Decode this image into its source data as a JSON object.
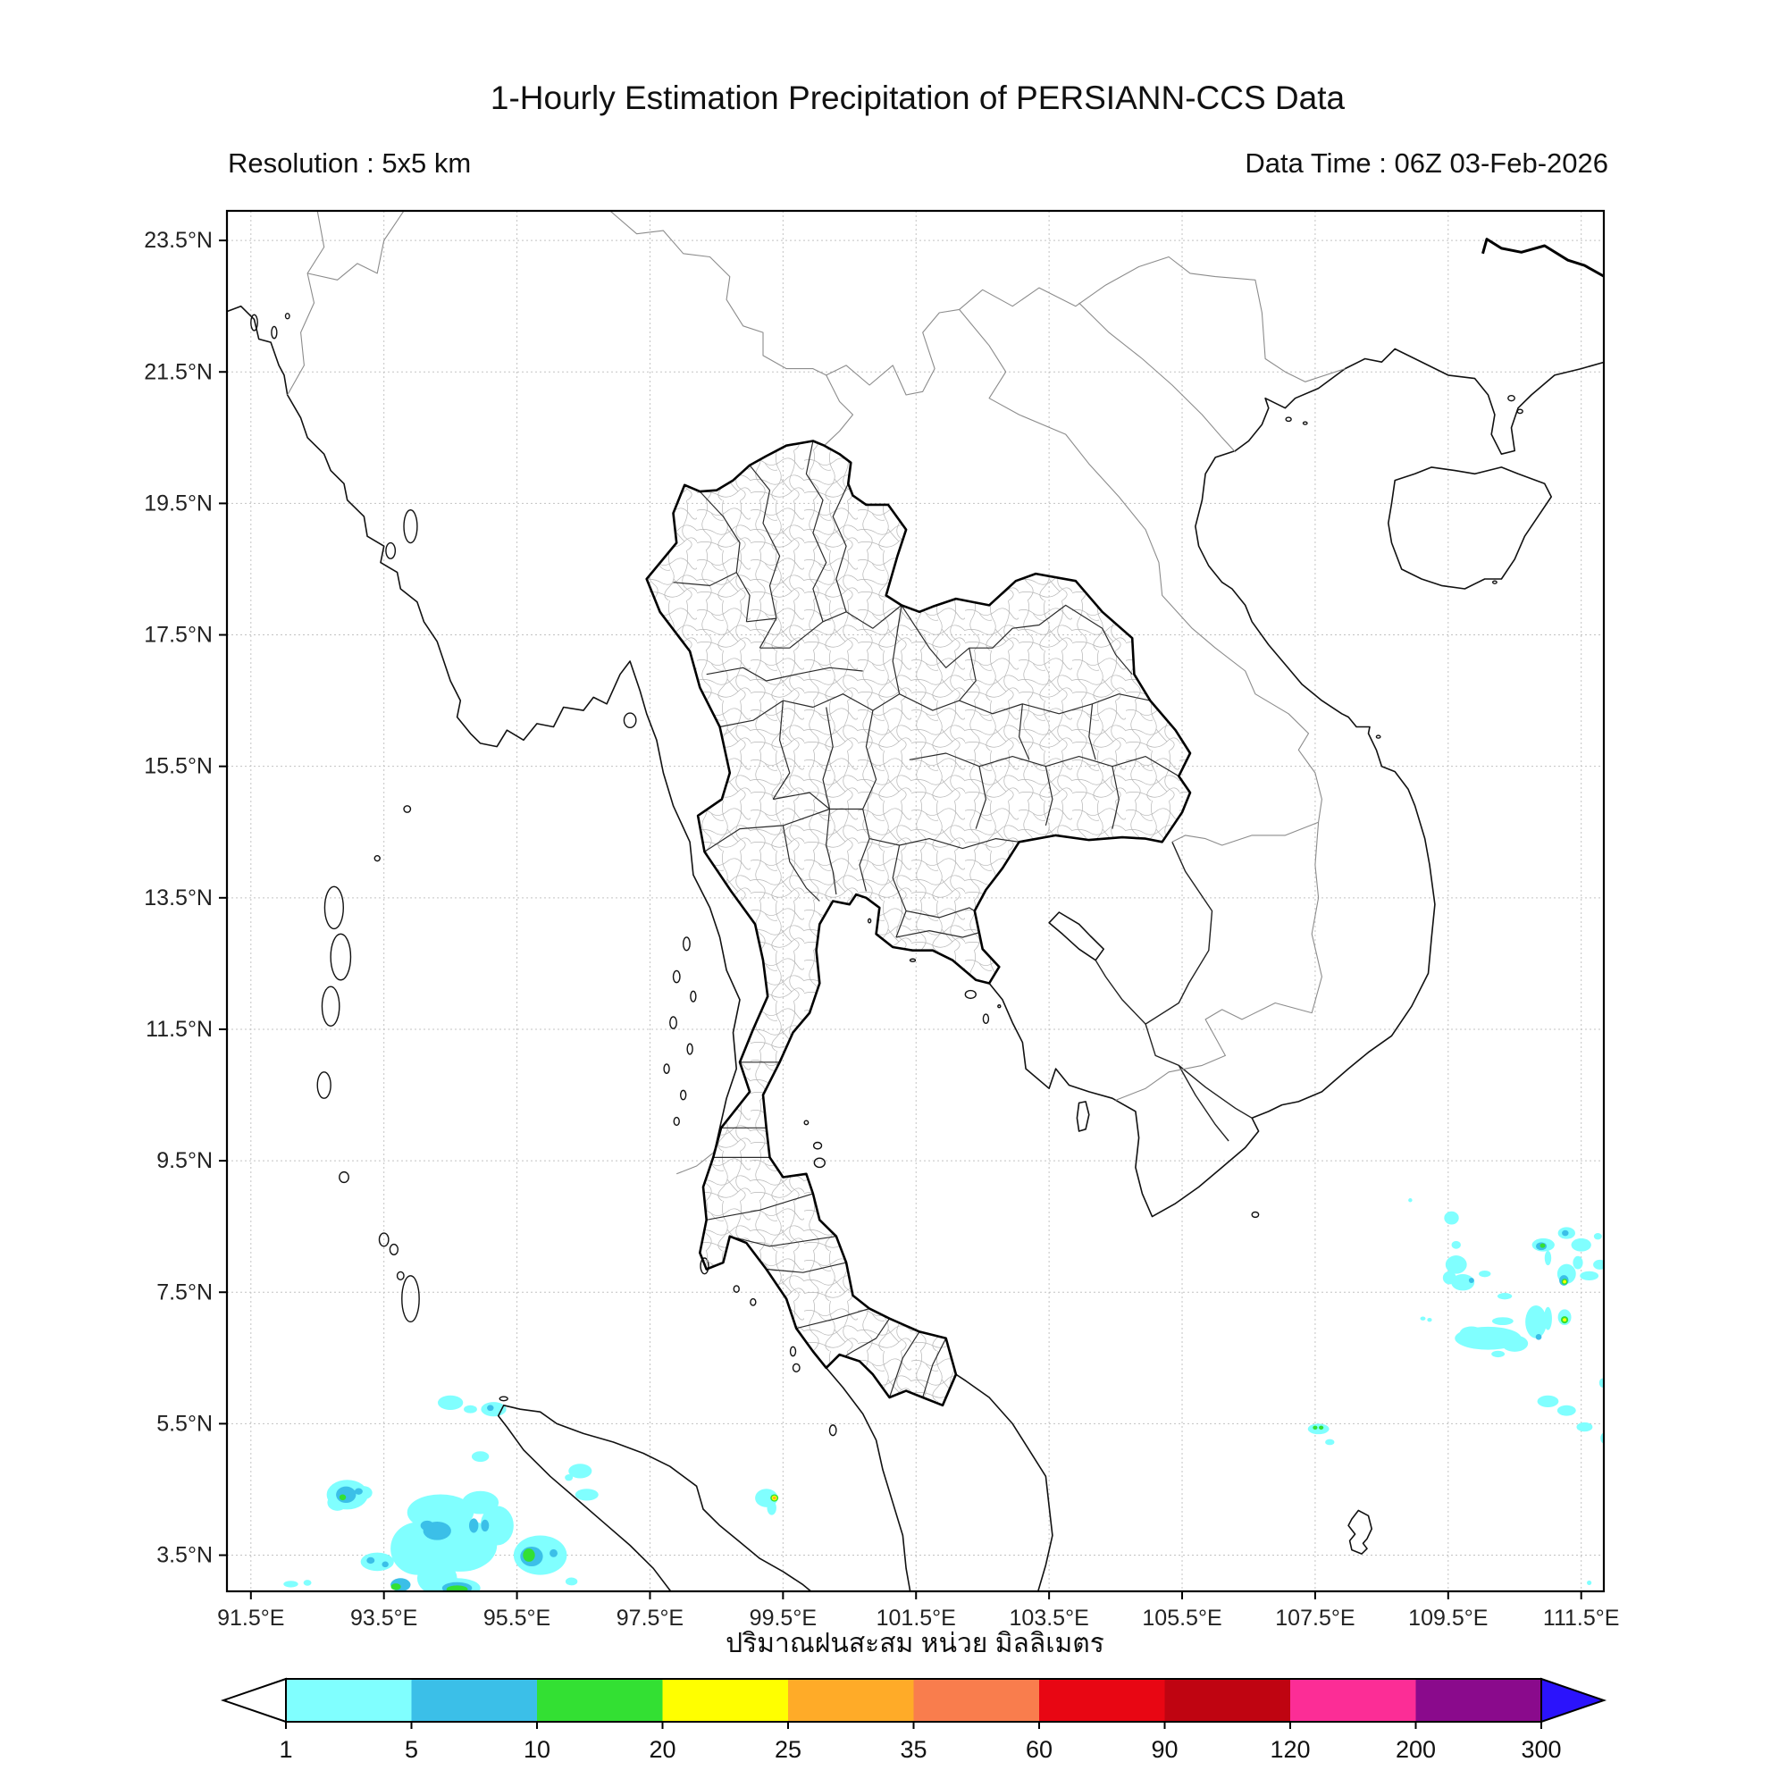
{
  "header": {
    "title": "1-Hourly Estimation Precipitation of PERSIANN-CCS Data",
    "resolution": "Resolution : 5x5 km",
    "data_time": "Data Time : 06Z 03-Feb-2026"
  },
  "axes": {
    "xlabel_thai": "ปริมาณฝนสะสม หน่วย มิลลิเมตร",
    "lat_tick_labels": [
      "23.5°N",
      "21.5°N",
      "19.5°N",
      "17.5°N",
      "15.5°N",
      "13.5°N",
      "11.5°N",
      "9.5°N",
      "7.5°N",
      "5.5°N",
      "3.5°N"
    ],
    "lat_tick_values": [
      23.5,
      21.5,
      19.5,
      17.5,
      15.5,
      13.5,
      11.5,
      9.5,
      7.5,
      5.5,
      3.5
    ],
    "lon_tick_labels": [
      "91.5°E",
      "93.5°E",
      "95.5°E",
      "97.5°E",
      "99.5°E",
      "101.5°E",
      "103.5°E",
      "105.5°E",
      "107.5°E",
      "109.5°E",
      "111.5°E"
    ],
    "lon_tick_values": [
      91.5,
      93.5,
      95.5,
      97.5,
      99.5,
      101.5,
      103.5,
      105.5,
      107.5,
      109.5,
      111.5
    ],
    "lon_range": [
      91.14,
      111.84
    ],
    "lat_range": [
      2.95,
      23.95
    ],
    "grid": true
  },
  "colorbar": {
    "labels": [
      "1",
      "5",
      "10",
      "20",
      "25",
      "35",
      "60",
      "90",
      "120",
      "200",
      "300"
    ],
    "values": [
      1,
      5,
      10,
      20,
      25,
      35,
      60,
      90,
      120,
      200,
      300
    ],
    "segment_colors": [
      "#80ffff",
      "#3bbfe8",
      "#33e033",
      "#ffff00",
      "#ffab28",
      "#f97d4d",
      "#e80613",
      "#bf0411",
      "#fc2d96",
      "#8a0a8c"
    ],
    "under_color": "#ffffff",
    "over_color": "#2b13fc",
    "units": "mm"
  },
  "precipitation": {
    "note": "cells = [lon, lat, width_deg, height_deg, level_mm]",
    "cells": [
      [
        92.95,
        4.42,
        0.62,
        0.45,
        1
      ],
      [
        92.8,
        4.3,
        0.3,
        0.25,
        1
      ],
      [
        93.2,
        4.45,
        0.25,
        0.2,
        1
      ],
      [
        92.93,
        4.42,
        0.3,
        0.25,
        5
      ],
      [
        93.12,
        4.47,
        0.12,
        0.1,
        5
      ],
      [
        92.88,
        4.38,
        0.1,
        0.09,
        10
      ],
      [
        94.35,
        4.15,
        1.0,
        0.55,
        1
      ],
      [
        94.0,
        3.6,
        0.8,
        0.8,
        1
      ],
      [
        94.65,
        3.65,
        1.1,
        0.8,
        1
      ],
      [
        94.95,
        4.3,
        0.55,
        0.35,
        1
      ],
      [
        95.2,
        3.95,
        0.5,
        0.6,
        1
      ],
      [
        94.3,
        3.15,
        0.6,
        0.5,
        1
      ],
      [
        94.6,
        3.0,
        0.7,
        0.3,
        1
      ],
      [
        94.3,
        3.87,
        0.42,
        0.28,
        5
      ],
      [
        94.15,
        3.95,
        0.2,
        0.15,
        5
      ],
      [
        94.85,
        3.95,
        0.14,
        0.22,
        5
      ],
      [
        95.02,
        3.95,
        0.12,
        0.18,
        5
      ],
      [
        94.6,
        3.0,
        0.45,
        0.18,
        5
      ],
      [
        94.6,
        2.98,
        0.32,
        0.12,
        10
      ],
      [
        93.75,
        3.05,
        0.3,
        0.2,
        5
      ],
      [
        93.68,
        3.02,
        0.15,
        0.1,
        10
      ],
      [
        95.85,
        3.5,
        0.8,
        0.6,
        1
      ],
      [
        95.72,
        3.48,
        0.34,
        0.3,
        5
      ],
      [
        95.68,
        3.5,
        0.18,
        0.2,
        10
      ],
      [
        96.05,
        3.53,
        0.12,
        0.12,
        5
      ],
      [
        93.4,
        3.4,
        0.5,
        0.28,
        1
      ],
      [
        93.3,
        3.42,
        0.12,
        0.1,
        5
      ],
      [
        93.52,
        3.36,
        0.1,
        0.09,
        5
      ],
      [
        92.1,
        3.06,
        0.22,
        0.1,
        1
      ],
      [
        92.35,
        3.08,
        0.12,
        0.09,
        1
      ],
      [
        94.5,
        5.82,
        0.38,
        0.22,
        1
      ],
      [
        94.8,
        5.72,
        0.2,
        0.12,
        1
      ],
      [
        95.15,
        5.72,
        0.38,
        0.22,
        1
      ],
      [
        95.1,
        5.74,
        0.1,
        0.09,
        5
      ],
      [
        94.95,
        5.0,
        0.26,
        0.16,
        1
      ],
      [
        96.45,
        4.78,
        0.35,
        0.22,
        1
      ],
      [
        96.28,
        4.68,
        0.12,
        0.1,
        1
      ],
      [
        96.55,
        4.42,
        0.35,
        0.18,
        1
      ],
      [
        96.32,
        3.1,
        0.18,
        0.12,
        1
      ],
      [
        99.25,
        4.37,
        0.34,
        0.28,
        1
      ],
      [
        99.33,
        4.22,
        0.14,
        0.22,
        1
      ],
      [
        99.37,
        4.37,
        0.12,
        0.11,
        10
      ],
      [
        99.37,
        4.37,
        0.08,
        0.075,
        20
      ],
      [
        99.37,
        4.37,
        0.045,
        0.04,
        25
      ],
      [
        108.93,
        8.9,
        0.06,
        0.06,
        1
      ],
      [
        109.55,
        8.63,
        0.22,
        0.2,
        1
      ],
      [
        109.62,
        8.22,
        0.14,
        0.12,
        1
      ],
      [
        109.62,
        7.92,
        0.32,
        0.28,
        1
      ],
      [
        109.72,
        7.65,
        0.35,
        0.25,
        1
      ],
      [
        109.52,
        7.72,
        0.2,
        0.2,
        1
      ],
      [
        110.05,
        7.78,
        0.18,
        0.1,
        1
      ],
      [
        109.85,
        7.68,
        0.08,
        0.08,
        5
      ],
      [
        111.28,
        8.4,
        0.26,
        0.18,
        1
      ],
      [
        111.26,
        8.4,
        0.1,
        0.09,
        5
      ],
      [
        110.93,
        8.22,
        0.34,
        0.2,
        1
      ],
      [
        110.9,
        8.2,
        0.16,
        0.12,
        5
      ],
      [
        110.92,
        8.21,
        0.08,
        0.07,
        10
      ],
      [
        111.5,
        8.22,
        0.3,
        0.2,
        1
      ],
      [
        111.75,
        8.35,
        0.12,
        0.1,
        1
      ],
      [
        111.0,
        8.02,
        0.1,
        0.22,
        1
      ],
      [
        111.28,
        7.78,
        0.28,
        0.3,
        1
      ],
      [
        111.45,
        7.95,
        0.15,
        0.2,
        1
      ],
      [
        111.24,
        7.68,
        0.14,
        0.16,
        5
      ],
      [
        111.25,
        7.66,
        0.09,
        0.09,
        10
      ],
      [
        111.25,
        7.66,
        0.05,
        0.05,
        20
      ],
      [
        111.62,
        7.75,
        0.28,
        0.14,
        1
      ],
      [
        111.78,
        7.92,
        0.2,
        0.15,
        1
      ],
      [
        110.35,
        7.44,
        0.22,
        0.1,
        1
      ],
      [
        109.12,
        7.1,
        0.08,
        0.06,
        1
      ],
      [
        109.22,
        7.08,
        0.07,
        0.06,
        1
      ],
      [
        111.25,
        7.12,
        0.2,
        0.24,
        1
      ],
      [
        111.25,
        7.08,
        0.11,
        0.11,
        10
      ],
      [
        111.25,
        7.08,
        0.055,
        0.05,
        20
      ],
      [
        110.82,
        7.05,
        0.32,
        0.5,
        1
      ],
      [
        111.0,
        7.1,
        0.12,
        0.35,
        1
      ],
      [
        110.86,
        6.82,
        0.09,
        0.09,
        5
      ],
      [
        110.32,
        7.06,
        0.32,
        0.12,
        1
      ],
      [
        110.1,
        6.8,
        1.0,
        0.35,
        1
      ],
      [
        109.85,
        6.88,
        0.35,
        0.2,
        1
      ],
      [
        110.5,
        6.72,
        0.4,
        0.25,
        1
      ],
      [
        110.25,
        6.56,
        0.2,
        0.1,
        1
      ],
      [
        111.82,
        6.12,
        0.1,
        0.14,
        1
      ],
      [
        111.0,
        5.84,
        0.32,
        0.18,
        1
      ],
      [
        111.28,
        5.7,
        0.28,
        0.16,
        1
      ],
      [
        111.55,
        5.45,
        0.24,
        0.14,
        1
      ],
      [
        111.84,
        5.28,
        0.1,
        0.16,
        1
      ],
      [
        107.55,
        5.42,
        0.32,
        0.16,
        1
      ],
      [
        107.5,
        5.44,
        0.07,
        0.06,
        10
      ],
      [
        107.59,
        5.44,
        0.07,
        0.06,
        10
      ],
      [
        107.72,
        5.22,
        0.14,
        0.09,
        1
      ],
      [
        111.62,
        3.08,
        0.07,
        0.07,
        1
      ]
    ]
  }
}
